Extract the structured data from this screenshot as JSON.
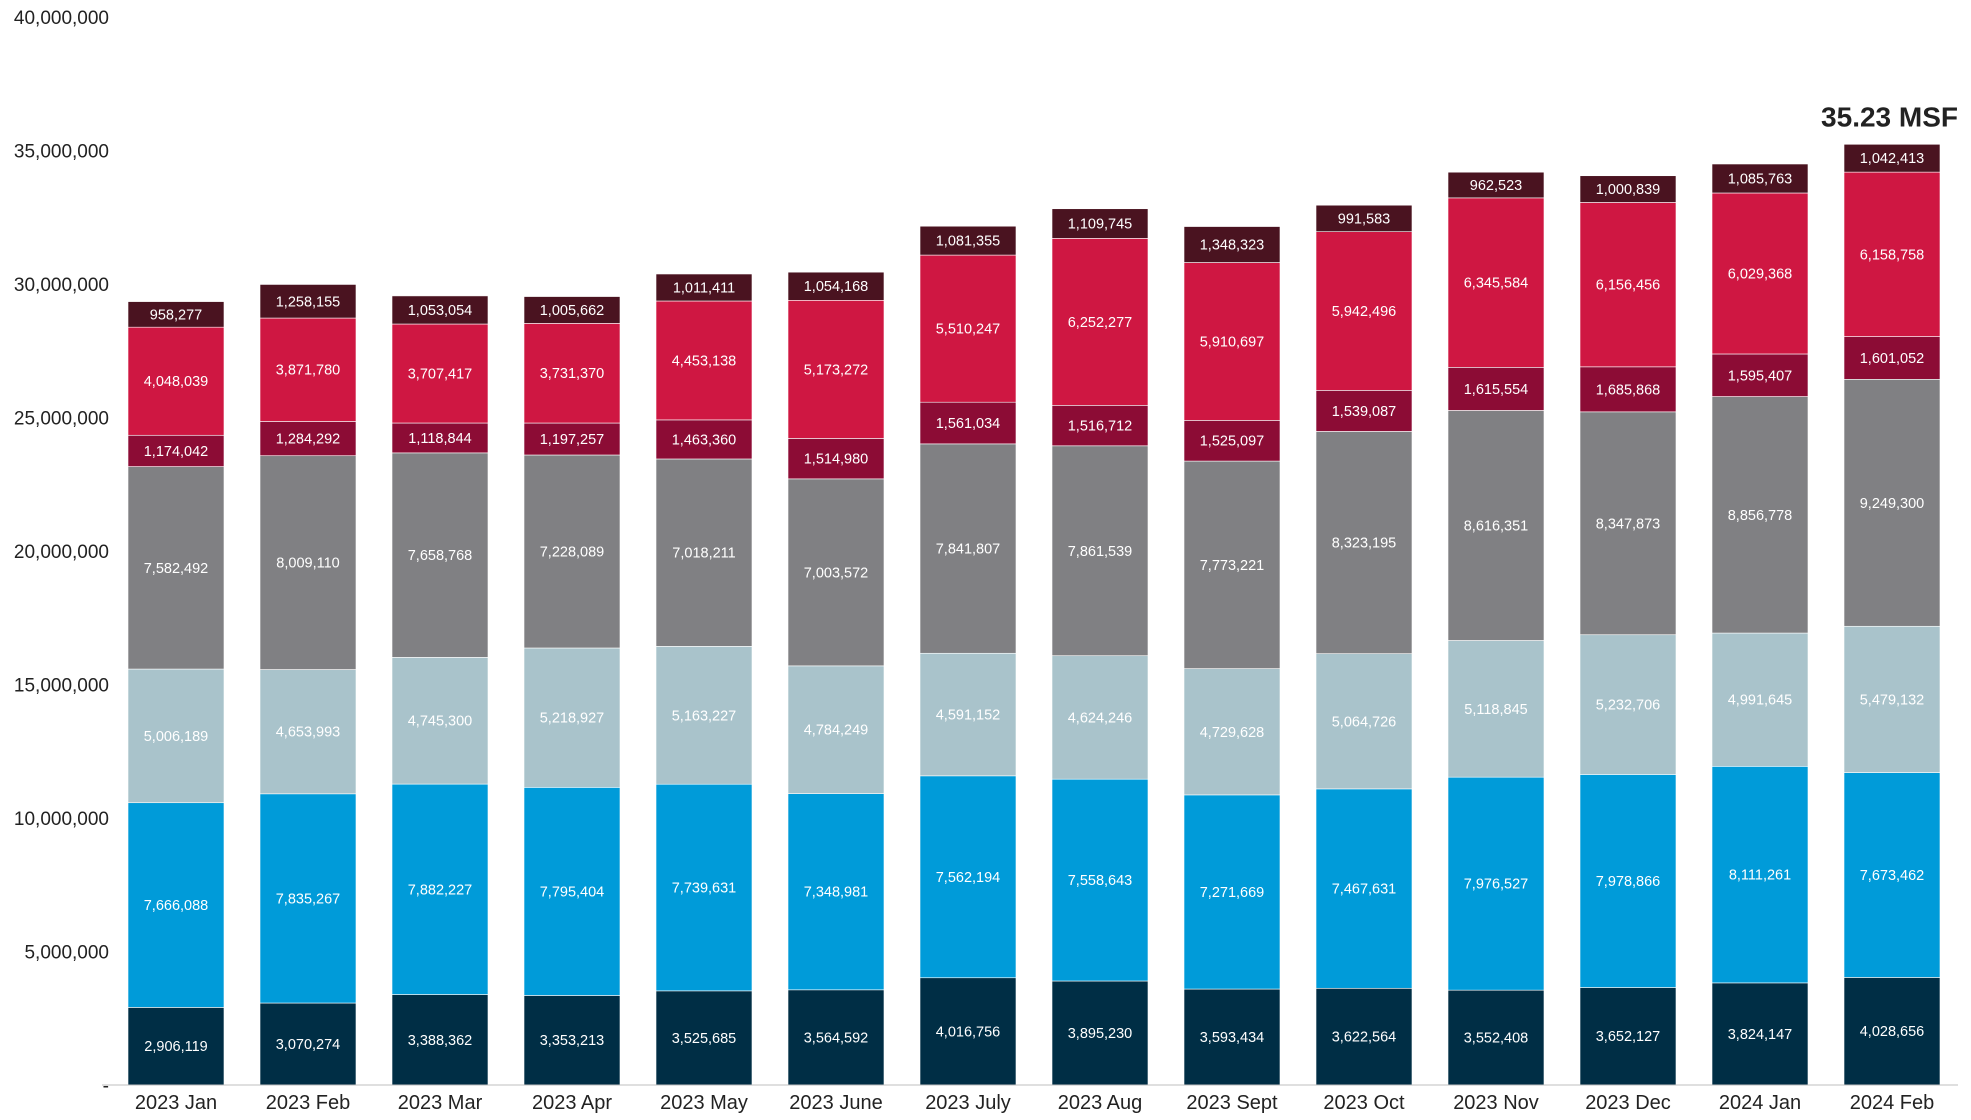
{
  "chart_data": {
    "type": "bar",
    "stacked": true,
    "categories": [
      "2023 Jan",
      "2023 Feb",
      "2023 Mar",
      "2023 Apr",
      "2023 May",
      "2023 June",
      "2023 July",
      "2023 Aug",
      "2023 Sept",
      "2023 Oct",
      "2023 Nov",
      "2023 Dec",
      "2024 Jan",
      "2024 Feb"
    ],
    "ylim": [
      0,
      40000000
    ],
    "yticks": [
      0,
      5000000,
      10000000,
      15000000,
      20000000,
      25000000,
      30000000,
      35000000,
      40000000
    ],
    "ytick_labels": [
      "-",
      "5,000,000",
      "10,000,000",
      "15,000,000",
      "20,000,000",
      "25,000,000",
      "30,000,000",
      "35,000,000",
      "40,000,000"
    ],
    "grid": false,
    "legend": "none",
    "annotation": "35.23 MSF",
    "series": [
      {
        "color": "#002e45",
        "label_color": "#ffffff",
        "values": [
          2906119,
          3070274,
          3388362,
          3353213,
          3525685,
          3564592,
          4016756,
          3895230,
          3593434,
          3622564,
          3552408,
          3652127,
          3824147,
          4028656
        ]
      },
      {
        "color": "#009bd9",
        "label_color": "#ffffff",
        "values": [
          7666088,
          7835267,
          7882227,
          7795404,
          7739631,
          7348981,
          7562194,
          7558643,
          7271669,
          7467631,
          7976527,
          7978866,
          8111261,
          7673462
        ]
      },
      {
        "color": "#a9c3cb",
        "label_color": "#ffffff",
        "values": [
          5006189,
          4653993,
          4745300,
          5218927,
          5163227,
          4784249,
          4591152,
          4624246,
          4729628,
          5064726,
          5118845,
          5232706,
          4991645,
          5479132
        ]
      },
      {
        "color": "#808083",
        "label_color": "#ffffff",
        "values": [
          7582492,
          8009110,
          7658768,
          7228089,
          7018211,
          7003572,
          7841807,
          7861539,
          7773221,
          8323195,
          8616351,
          8347873,
          8856778,
          9249300
        ]
      },
      {
        "color": "#8c0c35",
        "label_color": "#ffffff",
        "values": [
          1174042,
          1284292,
          1118844,
          1197257,
          1463360,
          1514980,
          1561034,
          1516712,
          1525097,
          1539087,
          1615554,
          1685868,
          1595407,
          1601052
        ]
      },
      {
        "color": "#cf1742",
        "label_color": "#ffffff",
        "values": [
          4048039,
          3871780,
          3707417,
          3731370,
          4453138,
          5173272,
          5510247,
          6252277,
          5910697,
          5942496,
          6345584,
          6156456,
          6029368,
          6158758
        ]
      },
      {
        "color": "#4a1320",
        "label_color": "#ffffff",
        "values": [
          958277,
          1258155,
          1053054,
          1005662,
          1011411,
          1054168,
          1081355,
          1109745,
          1348323,
          991583,
          962523,
          1000839,
          1085763,
          1042413
        ]
      }
    ]
  }
}
